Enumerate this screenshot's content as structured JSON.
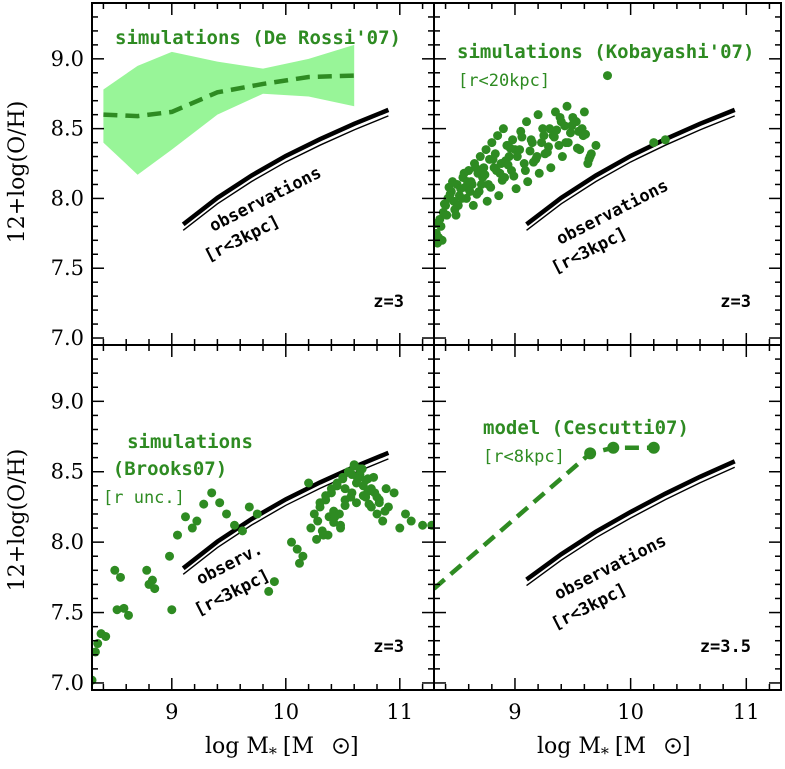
{
  "figure": {
    "ylabel": "12+log(O/H)",
    "xlabel_main": "log M",
    "xlabel_sub": "*",
    "xlabel_unit": "[M",
    "xlabel_unit_close": "]",
    "xlim": [
      8.3,
      11.3
    ],
    "ylim": [
      6.95,
      9.4
    ],
    "xticks": [
      "9",
      "10",
      "11"
    ],
    "yticks": [
      "7.0",
      "7.5",
      "8.0",
      "8.5",
      "9.0"
    ],
    "colors": {
      "green": "#2e8b22",
      "band": "#98f598",
      "black": "#000000"
    }
  },
  "chart_data": [
    {
      "type": "line",
      "panel": "top-left",
      "title": "simulations (De Rossi'07)",
      "obs_label": "observations",
      "obs_sub": "[r<3kpc]",
      "z_label": "z=3",
      "observations": {
        "x": [
          9.1,
          9.4,
          9.7,
          10.0,
          10.3,
          10.6,
          10.9
        ],
        "y": [
          7.8,
          7.99,
          8.15,
          8.29,
          8.41,
          8.52,
          8.62
        ]
      },
      "sim_median": {
        "x": [
          8.4,
          8.7,
          9.0,
          9.4,
          9.8,
          10.2,
          10.6
        ],
        "y": [
          8.6,
          8.59,
          8.62,
          8.76,
          8.82,
          8.87,
          8.88
        ]
      },
      "sim_band_upper": {
        "x": [
          8.4,
          8.7,
          9.0,
          9.4,
          9.8,
          10.2,
          10.6
        ],
        "y": [
          8.78,
          8.95,
          9.05,
          8.98,
          8.93,
          9.0,
          9.1
        ]
      },
      "sim_band_lower": {
        "x": [
          8.4,
          8.7,
          9.0,
          9.4,
          9.8,
          10.2,
          10.6
        ],
        "y": [
          8.4,
          8.17,
          8.35,
          8.6,
          8.75,
          8.73,
          8.66
        ]
      }
    },
    {
      "type": "scatter",
      "panel": "top-right",
      "title": "simulations (Kobayashi'07)",
      "subtitle": "[r<20kpc]",
      "obs_label": "observations",
      "obs_sub": "[r<3kpc]",
      "z_label": "z=3",
      "observations": {
        "x": [
          9.1,
          9.4,
          9.7,
          10.0,
          10.3,
          10.6,
          10.9
        ],
        "y": [
          7.8,
          7.99,
          8.15,
          8.29,
          8.41,
          8.52,
          8.62
        ]
      },
      "points": {
        "x": [
          8.32,
          8.35,
          8.38,
          8.4,
          8.42,
          8.45,
          8.47,
          8.5,
          8.52,
          8.55,
          8.57,
          8.6,
          8.62,
          8.65,
          8.68,
          8.7,
          8.73,
          8.75,
          8.78,
          8.8,
          8.83,
          8.85,
          8.88,
          8.9,
          8.93,
          8.95,
          8.98,
          9.0,
          9.05,
          9.1,
          9.15,
          9.2,
          9.25,
          9.3,
          9.35,
          9.4,
          9.45,
          9.5,
          9.55,
          9.6,
          9.65,
          9.7,
          9.8,
          10.2,
          10.3,
          8.33,
          8.36,
          8.41,
          8.44,
          8.48,
          8.53,
          8.58,
          8.63,
          8.67,
          8.72,
          8.77,
          8.82,
          8.87,
          8.92,
          8.97,
          9.02,
          9.08,
          9.13,
          9.18,
          9.23,
          9.28,
          9.33,
          9.38,
          9.43,
          9.48,
          9.53,
          9.58,
          9.63,
          8.34,
          8.39,
          8.43,
          8.49,
          8.54,
          8.59,
          8.64,
          8.69,
          8.74,
          8.79,
          8.84,
          8.89,
          8.94,
          8.99,
          9.04,
          9.09,
          9.14,
          9.19,
          9.24,
          9.29,
          9.34,
          9.39,
          9.44,
          9.49,
          9.54,
          9.59,
          9.64,
          8.31,
          8.37,
          8.46,
          8.51,
          8.56,
          8.61,
          8.66,
          8.71,
          8.76,
          8.81,
          8.86,
          8.91,
          8.96,
          9.01,
          9.06,
          9.11,
          9.16,
          9.21,
          9.26,
          9.31,
          9.36,
          9.41,
          9.46,
          9.51,
          9.56,
          9.61,
          9.66
        ],
        "y": [
          7.75,
          7.85,
          7.9,
          7.95,
          8.0,
          8.05,
          7.98,
          8.1,
          8.02,
          8.15,
          8.08,
          8.2,
          8.12,
          8.25,
          8.18,
          8.3,
          8.22,
          8.35,
          8.28,
          8.4,
          8.32,
          8.45,
          8.25,
          8.5,
          8.38,
          8.3,
          8.42,
          8.35,
          8.48,
          8.55,
          8.4,
          8.6,
          8.45,
          8.5,
          8.62,
          8.55,
          8.66,
          8.58,
          8.48,
          8.62,
          8.3,
          8.38,
          8.88,
          8.4,
          8.42,
          7.68,
          7.8,
          7.88,
          8.03,
          7.92,
          8.07,
          8.0,
          8.1,
          8.03,
          8.15,
          8.1,
          8.22,
          8.18,
          8.27,
          8.2,
          8.3,
          8.25,
          8.34,
          8.28,
          8.4,
          8.33,
          8.45,
          8.38,
          8.52,
          8.47,
          8.55,
          8.5,
          8.25,
          7.72,
          7.96,
          8.08,
          7.88,
          8.0,
          8.12,
          7.95,
          8.05,
          8.17,
          8.08,
          8.2,
          8.13,
          8.24,
          8.16,
          8.35,
          8.2,
          8.42,
          8.3,
          8.5,
          8.37,
          8.44,
          8.58,
          8.4,
          8.52,
          8.36,
          8.45,
          8.28,
          7.82,
          7.7,
          8.12,
          7.95,
          8.18,
          8.05,
          8.22,
          8.1,
          7.98,
          8.28,
          8.02,
          8.15,
          8.36,
          8.07,
          8.44,
          8.12,
          8.26,
          8.18,
          8.32,
          8.22,
          8.49,
          8.3,
          8.4,
          8.56,
          8.35,
          8.46,
          8.32
        ]
      }
    },
    {
      "type": "scatter",
      "panel": "bottom-left",
      "title_line1": "simulations",
      "title_line2": "(Brooks07)",
      "subtitle": "[r unc.]",
      "obs_label": "observ.",
      "obs_sub": "[r<3kpc]",
      "z_label": "z=3",
      "observations": {
        "x": [
          9.1,
          9.4,
          9.7,
          10.0,
          10.3,
          10.6,
          10.9
        ],
        "y": [
          7.8,
          7.99,
          8.15,
          8.29,
          8.41,
          8.52,
          8.62
        ]
      },
      "points": {
        "x": [
          8.3,
          8.33,
          8.35,
          8.38,
          8.42,
          8.5,
          8.52,
          8.55,
          8.58,
          8.62,
          8.78,
          8.8,
          8.83,
          8.85,
          8.98,
          9.0,
          9.05,
          9.12,
          9.18,
          9.22,
          9.28,
          9.35,
          9.42,
          9.48,
          9.55,
          9.62,
          9.68,
          9.75,
          9.85,
          9.9,
          10.05,
          10.1,
          10.12,
          10.15,
          10.2,
          10.22,
          10.25,
          10.28,
          10.3,
          10.33,
          10.35,
          10.38,
          10.4,
          10.42,
          10.45,
          10.48,
          10.5,
          10.52,
          10.55,
          10.58,
          10.6,
          10.62,
          10.65,
          10.68,
          10.7,
          10.72,
          10.75,
          10.78,
          10.8,
          10.82,
          10.85,
          10.88,
          10.9,
          10.95,
          11.0,
          11.05,
          11.1,
          11.2,
          11.28,
          10.3,
          10.35,
          10.4,
          10.45,
          10.5,
          10.55,
          10.6,
          10.65,
          10.7,
          10.75,
          10.8,
          10.42,
          10.47,
          10.52,
          10.57,
          10.62,
          10.67,
          10.72,
          10.77,
          10.82,
          10.87,
          10.37,
          10.32,
          10.27,
          10.52,
          10.63,
          10.58,
          10.68,
          10.73,
          10.43,
          10.48
        ],
        "y": [
          7.02,
          7.22,
          7.28,
          7.35,
          7.33,
          7.8,
          7.52,
          7.75,
          7.53,
          7.48,
          7.8,
          7.7,
          7.73,
          7.67,
          7.9,
          7.52,
          8.05,
          8.18,
          8.1,
          8.15,
          8.27,
          8.35,
          8.28,
          8.2,
          8.12,
          8.08,
          8.25,
          8.2,
          7.65,
          7.72,
          8.0,
          7.95,
          7.85,
          7.9,
          8.42,
          8.1,
          8.2,
          8.15,
          8.25,
          8.05,
          8.3,
          8.18,
          8.35,
          8.22,
          8.4,
          8.1,
          8.45,
          8.3,
          8.5,
          8.35,
          8.55,
          8.28,
          8.52,
          8.4,
          8.32,
          8.45,
          8.25,
          8.35,
          8.2,
          8.3,
          8.15,
          8.38,
          8.25,
          8.35,
          8.1,
          8.2,
          8.15,
          8.12,
          8.12,
          8.28,
          8.33,
          8.38,
          8.42,
          8.46,
          8.5,
          8.54,
          8.48,
          8.44,
          8.38,
          8.32,
          8.14,
          8.2,
          8.26,
          8.32,
          8.42,
          8.52,
          8.36,
          8.46,
          8.28,
          8.22,
          8.05,
          8.08,
          8.02,
          8.38,
          8.45,
          8.48,
          8.33,
          8.27,
          8.18,
          8.12
        ]
      }
    },
    {
      "type": "line",
      "panel": "bottom-right",
      "title": "model (Cescutti07)",
      "subtitle": "[r<8kpc]",
      "obs_label": "observations",
      "obs_sub": "[r<3kpc]",
      "z_label": "z=3.5",
      "observations": {
        "x": [
          9.1,
          9.4,
          9.7,
          10.0,
          10.3,
          10.6,
          10.9
        ],
        "y": [
          7.72,
          7.9,
          8.06,
          8.2,
          8.33,
          8.45,
          8.56
        ]
      },
      "model": {
        "x": [
          8.3,
          9.65,
          9.85,
          10.2
        ],
        "y": [
          7.67,
          8.63,
          8.67,
          8.67
        ]
      },
      "model_points": {
        "x": [
          9.65,
          9.85,
          10.2
        ],
        "y": [
          8.63,
          8.67,
          8.67
        ]
      }
    }
  ]
}
